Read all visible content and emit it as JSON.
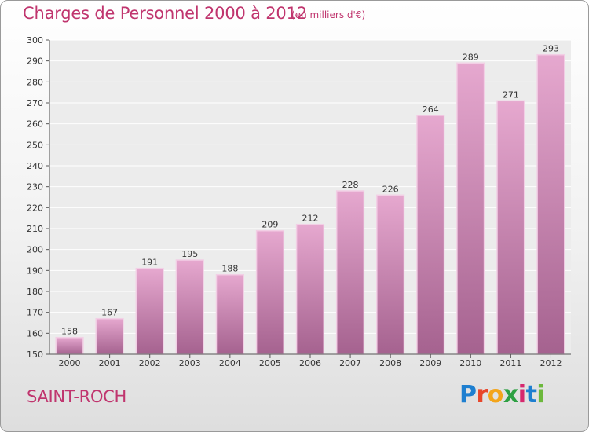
{
  "header": {
    "title": "Charges de Personnel 2000 à 2012",
    "unit": "(en milliers d'€)"
  },
  "footer": {
    "commune": "SAINT-ROCH",
    "logo": {
      "letters": [
        "P",
        "r",
        "o",
        "x",
        "i",
        "t",
        "i"
      ],
      "colors": [
        "#1e7fd0",
        "#e8462a",
        "#f3a51c",
        "#2ea043",
        "#d6286e",
        "#1e7fd0",
        "#6cb83c"
      ]
    }
  },
  "colors": {
    "text_accent": "#c0356e",
    "bar_top": "#e6a8cf",
    "bar_bottom": "#a5628f",
    "bar_edge": "#f2cfe5",
    "grid": "#ffffff",
    "background_top": "#ffffff",
    "background_bottom": "#dedede"
  },
  "chart_data": {
    "type": "bar",
    "categories": [
      "2000",
      "2001",
      "2002",
      "2003",
      "2004",
      "2005",
      "2006",
      "2007",
      "2008",
      "2009",
      "2010",
      "2011",
      "2012"
    ],
    "values": [
      158,
      167,
      191,
      195,
      188,
      209,
      212,
      228,
      226,
      264,
      289,
      271,
      293
    ],
    "title": "Charges de Personnel 2000 à 2012",
    "subtitle": "(en milliers d'€)",
    "xlabel": "",
    "ylabel": "",
    "ylim": [
      150,
      300
    ],
    "yticks": [
      150,
      160,
      170,
      180,
      190,
      200,
      210,
      220,
      230,
      240,
      250,
      260,
      270,
      280,
      290,
      300
    ],
    "grid": true,
    "legend": "none",
    "data_labels": true
  }
}
